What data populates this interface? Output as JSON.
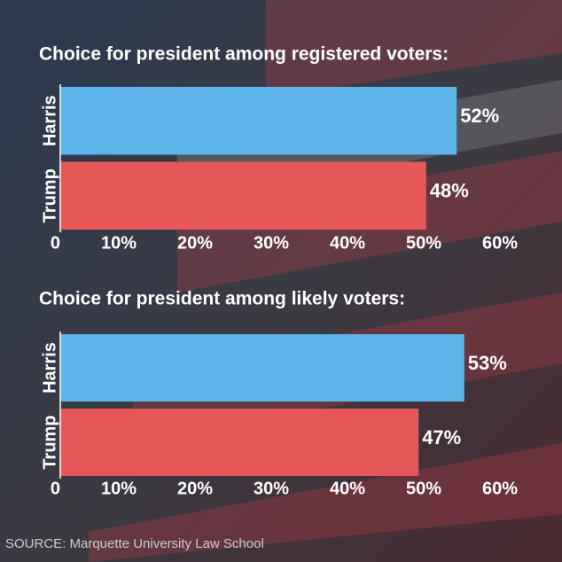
{
  "chart_data": [
    {
      "type": "bar",
      "orientation": "horizontal",
      "title": "Choice for president among registered voters:",
      "categories": [
        "Harris",
        "Trump"
      ],
      "values": [
        52,
        48
      ],
      "value_labels": [
        "52%",
        "48%"
      ],
      "colors": [
        "#5db4e6",
        "#e85757"
      ],
      "xlim": [
        0,
        60
      ],
      "xticks": [
        0,
        {
          "value": 10,
          "label": "10%"
        },
        {
          "value": 20,
          "label": "20%"
        },
        {
          "value": 30,
          "label": "30%"
        },
        {
          "value": 40,
          "label": "40%"
        },
        {
          "value": 50,
          "label": "50%"
        },
        {
          "value": 60,
          "label": "60%"
        }
      ]
    },
    {
      "type": "bar",
      "orientation": "horizontal",
      "title": "Choice for president among likely voters:",
      "categories": [
        "Harris",
        "Trump"
      ],
      "values": [
        53,
        47
      ],
      "value_labels": [
        "53%",
        "47%"
      ],
      "colors": [
        "#5db4e6",
        "#e85757"
      ],
      "xlim": [
        0,
        60
      ],
      "xticks": [
        0,
        {
          "value": 10,
          "label": "10%"
        },
        {
          "value": 20,
          "label": "20%"
        },
        {
          "value": 30,
          "label": "30%"
        },
        {
          "value": 40,
          "label": "40%"
        },
        {
          "value": 50,
          "label": "50%"
        },
        {
          "value": 60,
          "label": "60%"
        }
      ]
    }
  ],
  "source": "SOURCE: Marquette University Law School"
}
